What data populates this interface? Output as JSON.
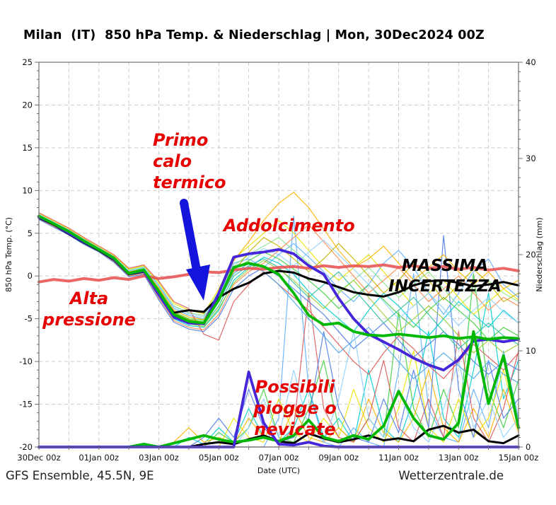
{
  "title": "Milan  (IT)  850 hPa Temp. & Niederschlag | Mon, 30Dec2024 00Z",
  "footer": {
    "left": "GFS Ensemble, 45.5N, 9E",
    "right": "Wetterzentrale.de"
  },
  "annotations": {
    "primo": {
      "text": "Primo\ncalo\ntermico",
      "color": "#e60000"
    },
    "addolcimento": {
      "text": "Addolcimento",
      "color": "#e60000"
    },
    "alta": {
      "text": "Alta\npressione",
      "color": "#e60000"
    },
    "massima": {
      "text": "MASSIMA\nINCERTEZZA",
      "color": "#000000"
    },
    "possibili": {
      "text": "Possibili\npiogge o nevicate",
      "color": "#e60000"
    },
    "arrow_icon_color": "#1414dd"
  },
  "chart_data": {
    "type": "line",
    "title": "Milan  (IT)  850 hPa Temp. & Niederschlag | Mon, 30Dec2024 00Z",
    "x_axis": {
      "label": "Date (UTC)",
      "tick_labels": [
        "30Dec 00z",
        "01Jan 00z",
        "03Jan 00z",
        "05Jan 00z",
        "07Jan 00z",
        "09Jan 00z",
        "11Jan 00z",
        "13Jan 00z",
        "15Jan 00z"
      ],
      "tick_days": [
        0,
        2,
        4,
        6,
        8,
        10,
        12,
        14,
        16
      ],
      "minor_every_days": 1,
      "range_days": [
        0,
        16
      ]
    },
    "y_left": {
      "label": "850 hPa Temp. (°C)",
      "min": -20,
      "max": 25,
      "major": 5,
      "minor": 1
    },
    "y_right": {
      "label": "Niederschlag (mm)",
      "min": 0,
      "max": 40,
      "major": 10,
      "minor": 1
    },
    "grid": "dashed",
    "legend_position": "none",
    "x_step_days": 0.5,
    "series": {
      "ensemble_mean_temperature": {
        "color": "#00b800",
        "width": 3.8,
        "values": [
          7.0,
          6.1,
          5.2,
          4.1,
          3.1,
          2.1,
          0.3,
          0.7,
          -1.8,
          -4.5,
          -5.3,
          -5.5,
          -2.8,
          1.0,
          1.5,
          1.1,
          0.2,
          -2.0,
          -4.6,
          -5.7,
          -5.5,
          -6.5,
          -6.9,
          -7.0,
          -6.8,
          -7.0,
          -7.2,
          -7.0,
          -7.3,
          -7.1,
          -7.4,
          -7.2,
          -7.3
        ]
      },
      "operational_temperature": {
        "color": "#000000",
        "width": 3.0,
        "values": [
          6.8,
          6.0,
          4.9,
          3.9,
          3.0,
          1.9,
          0.2,
          0.5,
          -2.0,
          -4.3,
          -4.0,
          -4.2,
          -2.5,
          -1.5,
          -0.8,
          0.3,
          0.6,
          0.4,
          -0.3,
          -0.7,
          -1.3,
          -1.9,
          -2.2,
          -2.4,
          -1.9,
          -1.1,
          -0.6,
          -0.5,
          -0.8,
          -1.2,
          -1.0,
          -0.7,
          -1.1
        ]
      },
      "control_temperature": {
        "color": "#4526d9",
        "width": 3.8,
        "values": [
          6.9,
          6.1,
          5.0,
          4.0,
          3.1,
          2.0,
          0.3,
          0.6,
          -2.2,
          -4.8,
          -5.5,
          -5.6,
          -2.0,
          2.2,
          2.6,
          2.8,
          3.1,
          2.6,
          1.2,
          0.2,
          -2.6,
          -5.0,
          -6.8,
          -7.7,
          -8.6,
          -9.6,
          -10.4,
          -11.0,
          -9.8,
          -7.6,
          -7.4,
          -7.7,
          -7.4
        ]
      },
      "climate_mean_temperature": {
        "color": "#e85252",
        "width": 4.0,
        "values": [
          -0.7,
          -0.4,
          -0.6,
          -0.3,
          -0.5,
          -0.2,
          -0.4,
          0.0,
          -0.3,
          -0.1,
          0.2,
          0.5,
          0.4,
          0.7,
          0.9,
          0.8,
          1.0,
          1.1,
          0.9,
          1.2,
          1.0,
          1.2,
          1.1,
          1.3,
          1.0,
          1.2,
          0.9,
          1.1,
          0.8,
          1.0,
          0.7,
          0.9,
          0.6
        ]
      },
      "ensemble_mean_precipitation": {
        "color": "#00b800",
        "width": 3.8,
        "values": [
          0,
          0,
          0,
          0,
          0,
          0,
          0,
          0.3,
          0,
          0.4,
          0.8,
          1.2,
          0.8,
          0.5,
          0.7,
          1.0,
          0.6,
          1.2,
          2.8,
          1.0,
          0.6,
          1.2,
          0.8,
          2.2,
          5.8,
          3.0,
          1.2,
          0.8,
          2.5,
          12.0,
          4.5,
          9.5,
          2.0
        ]
      },
      "operational_precipitation": {
        "color": "#000000",
        "width": 3.0,
        "values": [
          0,
          0,
          0,
          0,
          0,
          0,
          0,
          0,
          0,
          0,
          0,
          0.3,
          0.5,
          0.3,
          0.8,
          1.2,
          0.6,
          0.4,
          1.4,
          0.9,
          0.5,
          0.8,
          1.2,
          0.7,
          0.9,
          0.6,
          1.8,
          2.2,
          1.5,
          1.8,
          0.6,
          0.4,
          1.2
        ]
      },
      "control_precipitation": {
        "color": "#4526d9",
        "width": 3.8,
        "values": [
          0,
          0,
          0,
          0,
          0,
          0,
          0,
          0,
          0,
          0,
          0,
          0,
          0,
          0,
          7.8,
          2.5,
          0.3,
          0.2,
          0.5,
          0.1,
          0,
          0,
          0,
          0,
          0,
          0,
          0,
          0,
          0,
          0,
          0,
          0,
          0
        ]
      }
    },
    "members_temperature": [
      {
        "color": "#5fb0ff",
        "values": [
          7.2,
          6.3,
          5.4,
          4.3,
          3.3,
          2.3,
          0.6,
          1.0,
          -1.2,
          -3.8,
          -4.6,
          -5.0,
          -2.0,
          1.5,
          2.0,
          1.0,
          2.5,
          3.8,
          2.2,
          0.5,
          -1.5,
          -3.0,
          -1.0,
          1.5,
          3.0,
          1.0,
          -2.0,
          -4.5,
          -2.0,
          0.5,
          2.0,
          -1.0,
          -2.5
        ]
      },
      {
        "color": "#00cdd2",
        "values": [
          6.8,
          5.9,
          5.0,
          3.9,
          3.0,
          1.8,
          0.1,
          0.4,
          -2.4,
          -5.0,
          -5.8,
          -6.0,
          -4.0,
          -0.5,
          1.0,
          2.2,
          1.5,
          0.2,
          -1.8,
          -3.5,
          -5.0,
          -6.5,
          -4.0,
          -2.0,
          -3.5,
          -5.5,
          -7.0,
          -5.0,
          -3.0,
          -4.5,
          -6.0,
          -4.0,
          -5.5
        ]
      },
      {
        "color": "#3ecf3e",
        "values": [
          7.1,
          6.2,
          5.1,
          4.0,
          3.1,
          2.0,
          0.5,
          0.9,
          -1.5,
          -4.2,
          -5.0,
          -5.2,
          -2.5,
          0.8,
          1.8,
          2.8,
          2.0,
          0.8,
          -0.5,
          -2.0,
          -3.8,
          -2.5,
          -1.0,
          -2.8,
          -4.5,
          -6.0,
          -4.0,
          -2.5,
          -4.0,
          -5.5,
          -7.5,
          -6.0,
          -7.0
        ]
      },
      {
        "color": "#8ce68c",
        "values": [
          6.9,
          6.0,
          5.2,
          4.2,
          3.2,
          2.2,
          0.7,
          1.1,
          -1.0,
          -3.5,
          -4.3,
          -4.6,
          -1.8,
          1.2,
          2.5,
          3.5,
          4.5,
          3.0,
          1.5,
          0.0,
          -1.8,
          -0.5,
          1.0,
          -0.8,
          -2.5,
          -1.0,
          0.5,
          -1.5,
          -3.5,
          -2.0,
          -0.5,
          -2.0,
          -3.0
        ]
      },
      {
        "color": "#ece400",
        "values": [
          7.3,
          6.4,
          5.5,
          4.4,
          3.4,
          2.4,
          0.8,
          1.2,
          -0.8,
          -3.2,
          -4.0,
          -4.4,
          -1.5,
          2.0,
          3.5,
          5.0,
          6.5,
          5.0,
          3.0,
          1.0,
          -0.5,
          1.0,
          2.5,
          0.5,
          -1.5,
          -3.5,
          -2.0,
          -0.5,
          -2.5,
          -4.5,
          -3.0,
          -1.5,
          -2.8
        ]
      },
      {
        "color": "#ffb300",
        "values": [
          7.0,
          6.1,
          5.3,
          4.1,
          3.2,
          2.1,
          0.4,
          0.8,
          -1.4,
          -4.0,
          -4.8,
          -5.1,
          -2.2,
          1.8,
          4.0,
          6.5,
          8.5,
          9.8,
          8.0,
          5.5,
          3.0,
          1.0,
          2.0,
          3.5,
          1.5,
          -0.5,
          1.0,
          2.5,
          0.5,
          -1.0,
          0.5,
          -1.5,
          -0.5
        ]
      },
      {
        "color": "#ff8a50",
        "values": [
          6.7,
          5.8,
          4.9,
          3.8,
          2.9,
          1.7,
          0.0,
          0.3,
          -2.6,
          -5.2,
          -6.0,
          -6.3,
          -4.5,
          -1.0,
          0.5,
          1.5,
          3.0,
          4.5,
          6.0,
          4.0,
          2.0,
          0.0,
          -2.0,
          -0.5,
          1.0,
          -1.0,
          -3.0,
          -1.5,
          0.0,
          -2.0,
          -4.0,
          -2.5,
          -3.5
        ]
      },
      {
        "color": "#de5858",
        "values": [
          7.4,
          6.5,
          5.6,
          4.5,
          3.5,
          2.5,
          0.9,
          1.3,
          -0.6,
          -3.0,
          -3.8,
          -6.8,
          -7.5,
          -3.0,
          -1.0,
          0.5,
          -1.0,
          -2.5,
          -4.0,
          -6.0,
          -8.0,
          -10.0,
          -11.5,
          -9.0,
          -7.0,
          -8.5,
          -10.5,
          -12.0,
          -10.0,
          -8.0,
          -9.5,
          -11.0,
          -9.0
        ]
      },
      {
        "color": "#4f7de8",
        "values": [
          6.6,
          5.7,
          4.8,
          3.7,
          2.8,
          1.6,
          -0.1,
          0.2,
          -2.8,
          -5.4,
          -6.2,
          -6.5,
          -4.8,
          -1.5,
          0.0,
          1.0,
          0.0,
          -1.5,
          -3.0,
          -4.5,
          -6.5,
          -8.5,
          -7.0,
          -5.5,
          -7.5,
          -9.5,
          -8.0,
          -6.5,
          -8.0,
          -10.0,
          -11.5,
          -10.0,
          -11.0
        ]
      },
      {
        "color": "#8fd3ff",
        "values": [
          7.2,
          6.3,
          5.3,
          4.2,
          3.3,
          2.2,
          0.6,
          1.0,
          -1.1,
          -3.6,
          -4.4,
          -4.8,
          -2.0,
          1.0,
          2.2,
          3.2,
          2.5,
          1.2,
          2.8,
          4.2,
          2.5,
          0.8,
          -1.0,
          -3.0,
          -5.0,
          -3.5,
          -2.0,
          -3.8,
          -5.8,
          -4.0,
          -2.5,
          -4.2,
          -5.5
        ]
      },
      {
        "color": "#2fbf9f",
        "values": [
          6.9,
          6.0,
          5.1,
          4.0,
          3.0,
          1.9,
          0.3,
          0.6,
          -1.9,
          -4.6,
          -5.4,
          -5.7,
          -3.5,
          0.0,
          1.2,
          2.0,
          1.0,
          -0.8,
          -2.5,
          -1.0,
          0.5,
          -1.5,
          -3.5,
          -5.5,
          -4.0,
          -2.5,
          -4.5,
          -6.5,
          -8.5,
          -7.0,
          -5.5,
          -7.0,
          -8.0
        ]
      },
      {
        "color": "#c8b400",
        "values": [
          7.1,
          6.2,
          5.2,
          4.1,
          3.1,
          2.0,
          0.5,
          0.8,
          -1.6,
          -4.3,
          -5.1,
          -5.4,
          -2.8,
          0.5,
          2.8,
          4.5,
          3.5,
          2.0,
          0.5,
          2.0,
          3.8,
          2.0,
          0.0,
          -2.0,
          -0.5,
          1.5,
          -0.5,
          -2.8,
          -1.0,
          0.8,
          -0.8,
          -3.0,
          -2.0
        ]
      },
      {
        "color": "#49a8e8",
        "values": [
          7.0,
          6.1,
          5.2,
          4.0,
          3.1,
          2.0,
          0.4,
          0.7,
          -1.7,
          -4.4,
          -5.2,
          -5.5,
          -3.0,
          0.3,
          1.5,
          0.5,
          -1.0,
          -3.0,
          -5.0,
          -7.0,
          -9.0,
          -7.5,
          -6.0,
          -8.0,
          -10.0,
          -12.0,
          -10.5,
          -9.0,
          -10.5,
          -12.0,
          -10.0,
          -11.5,
          -12.5
        ]
      },
      {
        "color": "#9acd32",
        "values": [
          6.8,
          5.9,
          5.0,
          3.9,
          2.9,
          1.8,
          0.2,
          0.5,
          -2.1,
          -4.8,
          -5.6,
          -5.9,
          -3.8,
          -0.8,
          0.8,
          1.8,
          0.8,
          -0.5,
          -2.2,
          -3.8,
          -2.0,
          -0.5,
          -2.5,
          -4.5,
          -6.5,
          -5.0,
          -3.5,
          -5.0,
          -7.0,
          -9.0,
          -7.5,
          -9.0,
          -8.0
        ]
      }
    ],
    "members_precipitation": [
      {
        "color": "#5fb0ff",
        "values": [
          0,
          0,
          0,
          0,
          0,
          0,
          0,
          0,
          0,
          0,
          0,
          0,
          0,
          0,
          0,
          0,
          3,
          24,
          6,
          0.5,
          0,
          2,
          0.5,
          0,
          8,
          18,
          4,
          1,
          0.5,
          6,
          2,
          10,
          3
        ]
      },
      {
        "color": "#00cdd2",
        "values": [
          0,
          0,
          0,
          0,
          0,
          0,
          0,
          0,
          0,
          0,
          1,
          0.3,
          2,
          0.5,
          4,
          1,
          0.5,
          2,
          6,
          1,
          3,
          0.5,
          8,
          2,
          0.5,
          5,
          12,
          3,
          1,
          8,
          16,
          5,
          9
        ]
      },
      {
        "color": "#3ecf3e",
        "values": [
          0,
          0,
          0,
          0,
          0,
          0,
          0,
          0,
          0,
          0,
          0,
          0,
          1.5,
          0.5,
          2,
          6,
          1,
          0.5,
          4,
          9,
          2,
          0.5,
          3,
          1,
          14,
          4,
          1,
          6,
          2,
          18,
          6,
          2,
          7
        ]
      },
      {
        "color": "#ece400",
        "values": [
          0,
          0,
          0,
          0,
          0,
          0,
          0,
          0,
          0,
          0,
          0,
          0,
          0,
          3,
          1,
          0.5,
          5,
          1.5,
          0.5,
          3,
          1,
          6,
          2,
          0.5,
          4,
          10,
          2,
          0.5,
          5,
          1,
          3,
          8,
          2
        ]
      },
      {
        "color": "#ffb300",
        "values": [
          0,
          0,
          0,
          0,
          0,
          0,
          0,
          0,
          0,
          0.5,
          2,
          0.5,
          1,
          0.3,
          3,
          1,
          0.5,
          4,
          1,
          0.5,
          2,
          0.5,
          5,
          1.5,
          0.5,
          3,
          8,
          2,
          0.5,
          4,
          1,
          6,
          1.5
        ]
      },
      {
        "color": "#de5858",
        "values": [
          0,
          0,
          0,
          0,
          0,
          0,
          0,
          0,
          0,
          0,
          0,
          0,
          0,
          0,
          0,
          0,
          0,
          2,
          16,
          4,
          1,
          0.5,
          3,
          9,
          2,
          0.5,
          5,
          1,
          12,
          3,
          0.5,
          4,
          10
        ]
      },
      {
        "color": "#4f7de8",
        "values": [
          0,
          0,
          0,
          0,
          0,
          0,
          0,
          0,
          0,
          0,
          0,
          1,
          3,
          1,
          6,
          2,
          0.5,
          1,
          3,
          12,
          4,
          1,
          0.5,
          5,
          1.5,
          8,
          2,
          22,
          6,
          1,
          9,
          3,
          5
        ]
      },
      {
        "color": "#8fd3ff",
        "values": [
          0,
          0,
          0,
          0,
          0,
          0,
          0,
          0,
          0,
          0,
          0,
          0,
          0,
          0,
          2,
          5,
          1,
          8,
          2,
          0.5,
          5,
          12,
          3,
          1,
          6,
          2,
          0.5,
          4,
          9,
          2,
          5,
          1,
          3
        ]
      }
    ]
  }
}
